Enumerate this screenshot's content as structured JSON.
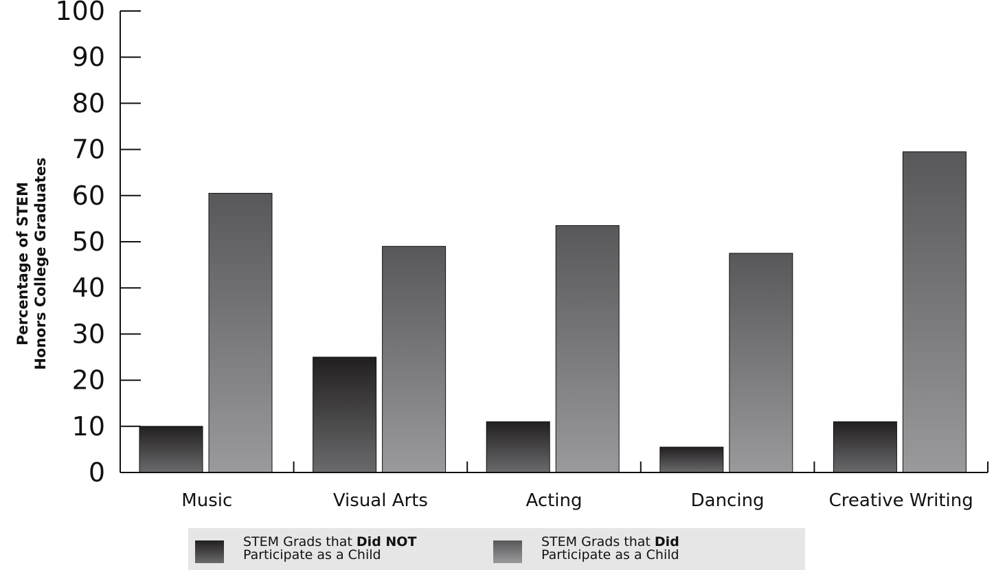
{
  "chart_data": {
    "type": "bar",
    "title": "",
    "xlabel": "",
    "ylabel_lines": [
      "Percentage of STEM",
      "Honors College Graduates"
    ],
    "categories": [
      "Music",
      "Visual Arts",
      "Acting",
      "Dancing",
      "Creative Writing"
    ],
    "ylim": [
      0,
      100
    ],
    "yticks": [
      "0",
      "10",
      "20",
      "30",
      "40",
      "50",
      "60",
      "70",
      "80",
      "90",
      "100"
    ],
    "grid": false,
    "legend_position": "bottom",
    "series": [
      {
        "legend_prefix": "STEM Grads that ",
        "legend_bold": "Did NOT",
        "legend_line2": "Participate as a Child",
        "values": [
          10,
          25,
          11,
          5.5,
          11
        ],
        "color_top": "#221f20",
        "color_bottom": "#6a6a6c"
      },
      {
        "legend_prefix": "STEM Grads that ",
        "legend_bold": "Did",
        "legend_line2": "Participate as a Child",
        "values": [
          60.5,
          49,
          53.5,
          47.5,
          69.5
        ],
        "color_top": "#58585a",
        "color_bottom": "#9a9a9d"
      }
    ]
  }
}
